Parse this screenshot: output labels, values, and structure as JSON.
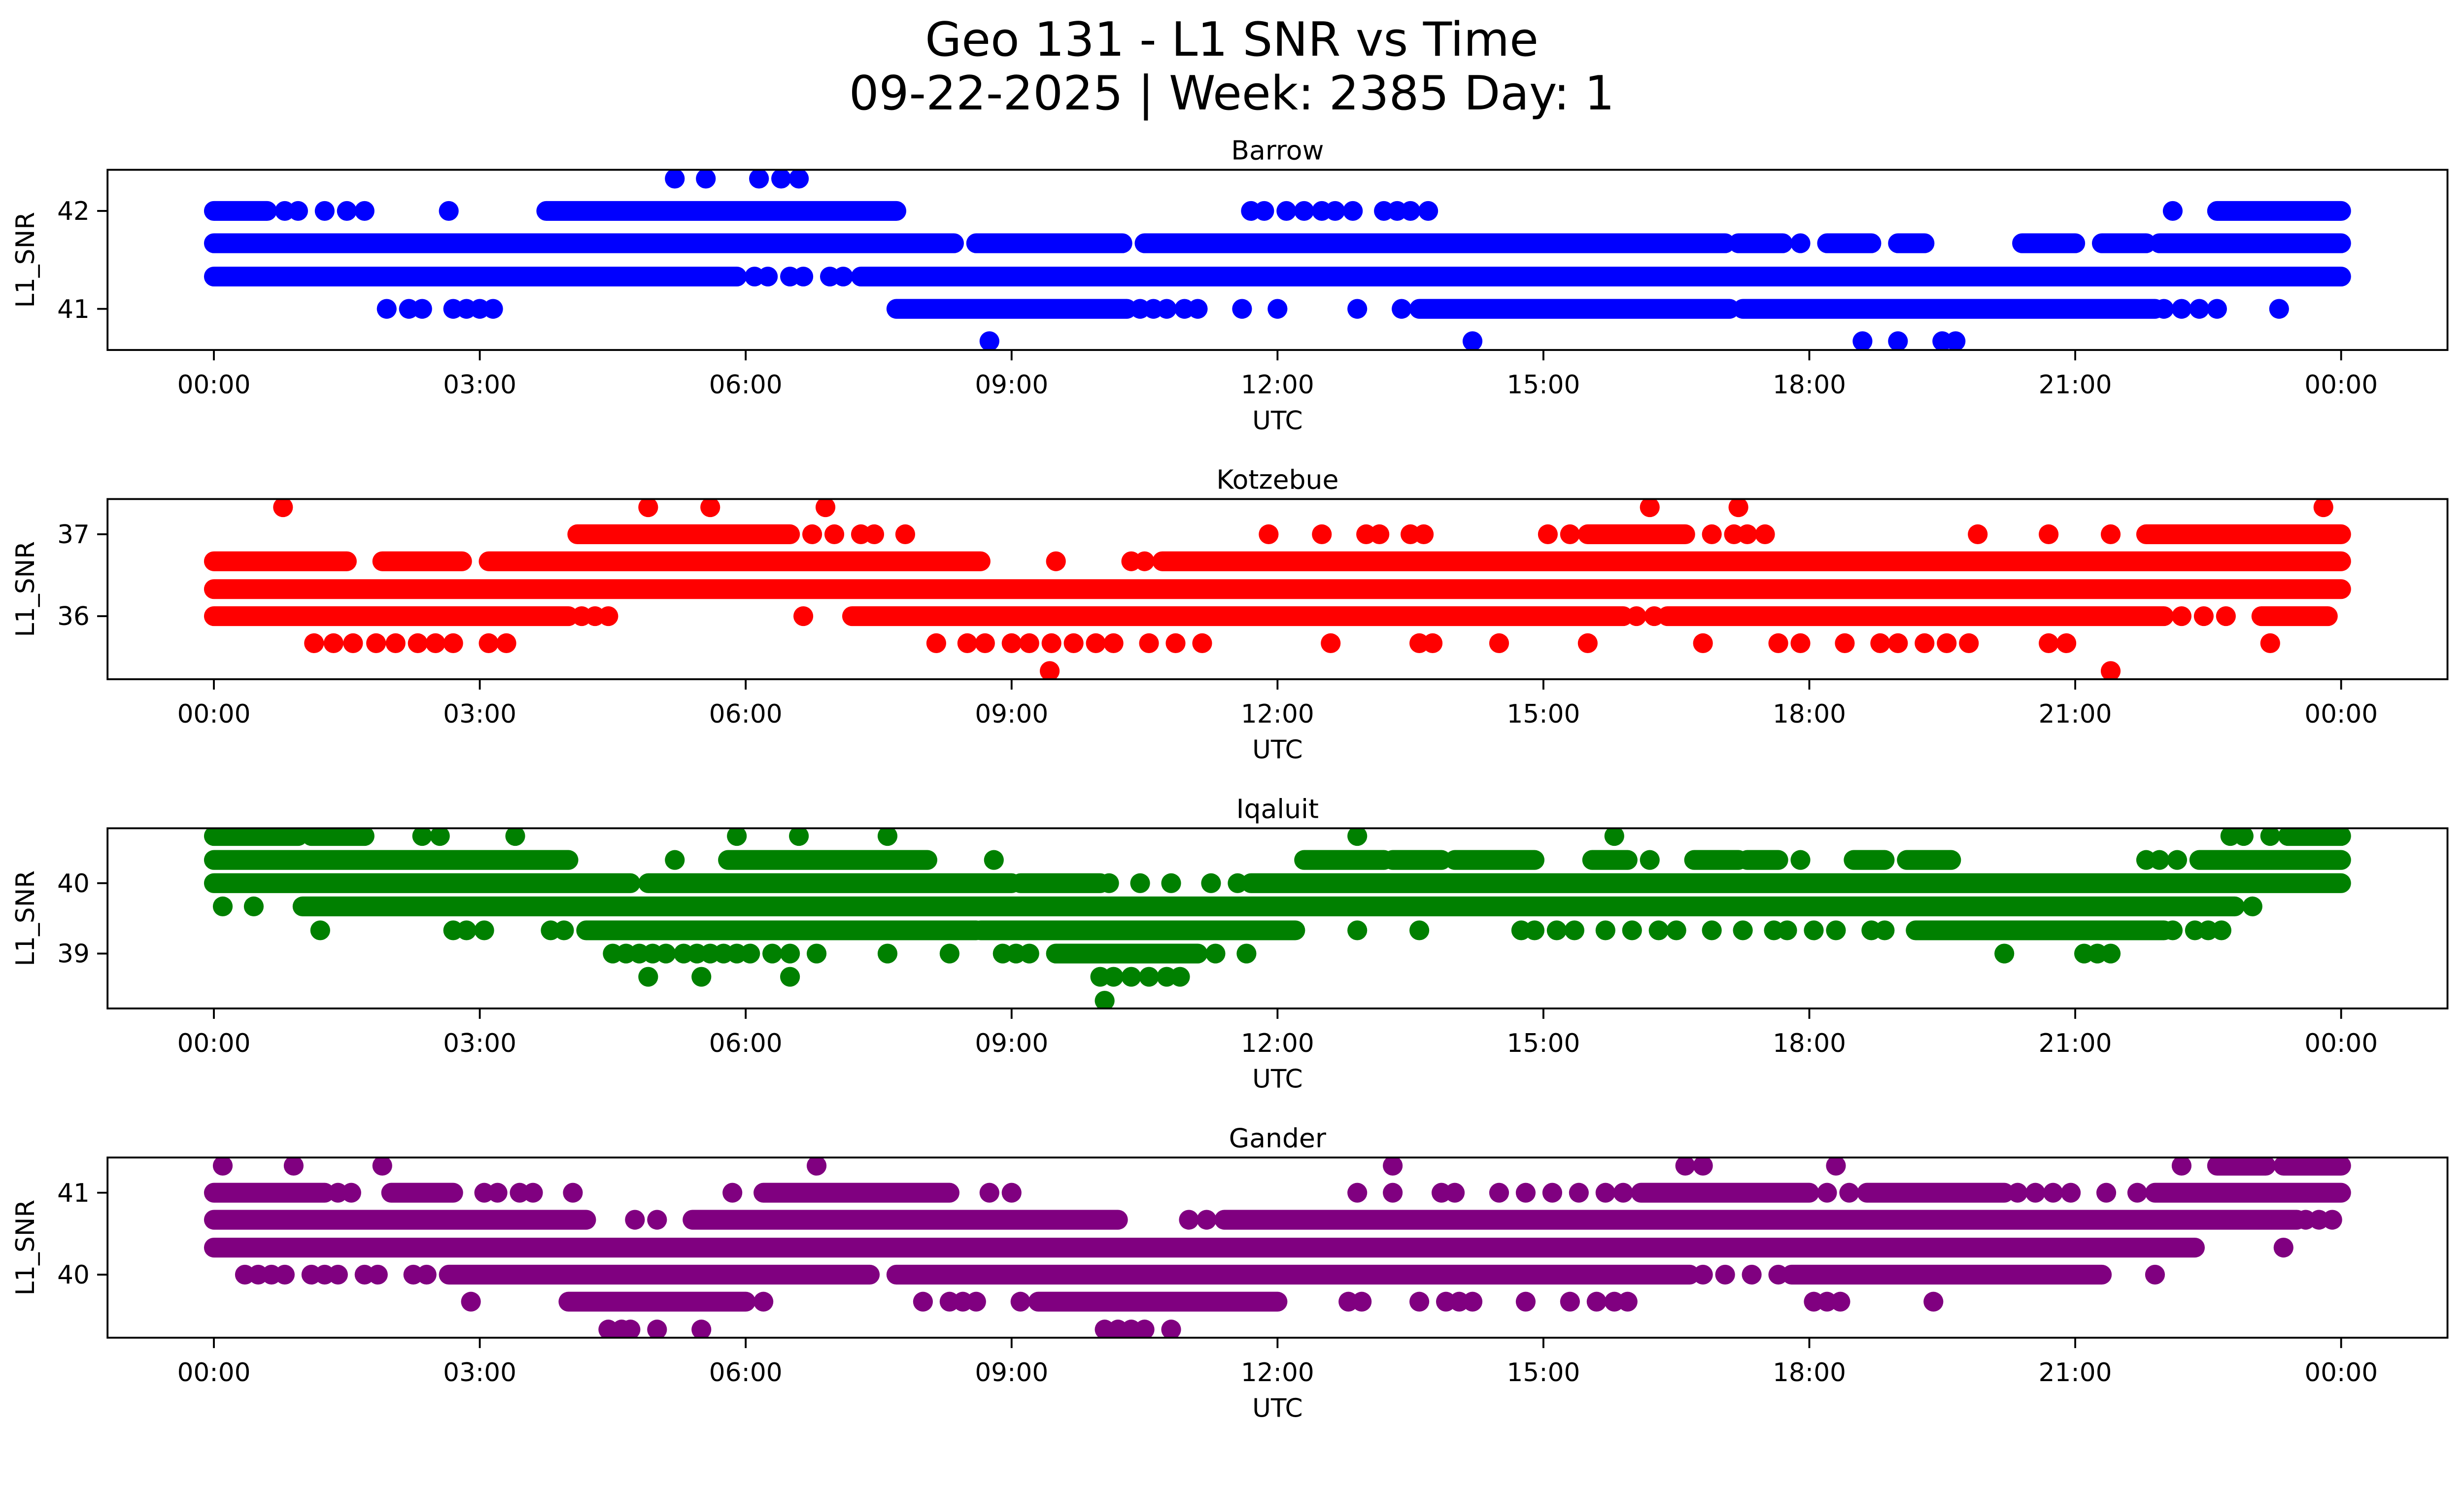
{
  "title": {
    "line1": "Geo 131 - L1 SNR vs Time",
    "line2": "09-22-2025 | Week: 2385 Day: 1"
  },
  "chart_data": [
    {
      "type": "scatter",
      "title": "Barrow",
      "color": "#0000ff",
      "xlabel": "UTC",
      "ylabel": "L1_SNR",
      "x_tick_hours": [
        0,
        3,
        6,
        9,
        12,
        15,
        18,
        21,
        24
      ],
      "x_tick_labels": [
        "00:00",
        "03:00",
        "06:00",
        "09:00",
        "12:00",
        "15:00",
        "18:00",
        "21:00",
        "00:00"
      ],
      "y_ticks": [
        41,
        42
      ],
      "ylim": [
        40.58,
        42.42
      ],
      "xlim": [
        -1.2,
        25.2
      ],
      "bands": [
        {
          "snr": 42.33,
          "solid": [],
          "dots": [
            5.2,
            5.55,
            6.15,
            6.4,
            6.6
          ]
        },
        {
          "snr": 42.0,
          "solid": [
            [
              0,
              0.6
            ],
            [
              3.75,
              7.7
            ],
            [
              22.6,
              24
            ]
          ],
          "dots": [
            0.8,
            0.95,
            1.25,
            1.5,
            1.7,
            2.65,
            11.7,
            11.85,
            12.1,
            12.3,
            12.5,
            12.65,
            12.85,
            13.2,
            13.35,
            13.5,
            13.7,
            22.1
          ]
        },
        {
          "snr": 41.67,
          "solid": [
            [
              0,
              8.35
            ],
            [
              8.6,
              10.25
            ],
            [
              10.5,
              17.05
            ],
            [
              17.2,
              17.7
            ],
            [
              18.2,
              18.7
            ],
            [
              19,
              19.3
            ],
            [
              20.4,
              21
            ],
            [
              21.3,
              21.8
            ],
            [
              21.95,
              24
            ]
          ],
          "dots": [
            17.9
          ]
        },
        {
          "snr": 41.33,
          "solid": [
            [
              0,
              5.9
            ],
            [
              7.3,
              24
            ]
          ],
          "dots": [
            6.1,
            6.25,
            6.5,
            6.65,
            6.95,
            7.1
          ]
        },
        {
          "snr": 41.0,
          "solid": [
            [
              7.7,
              10.3
            ],
            [
              13.6,
              17.1
            ],
            [
              17.25,
              21.9
            ]
          ],
          "dots": [
            1.95,
            2.2,
            2.35,
            2.7,
            2.85,
            3,
            3.15,
            10.45,
            10.6,
            10.75,
            10.95,
            11.1,
            11.6,
            12,
            12.9,
            13.4,
            22,
            22.2,
            22.4,
            22.6,
            23.3
          ]
        },
        {
          "snr": 40.67,
          "solid": [],
          "dots": [
            8.75,
            14.2,
            18.6,
            19,
            19.5,
            19.65
          ]
        }
      ]
    },
    {
      "type": "scatter",
      "title": "Kotzebue",
      "color": "#ff0000",
      "xlabel": "UTC",
      "ylabel": "L1_SNR",
      "x_tick_hours": [
        0,
        3,
        6,
        9,
        12,
        15,
        18,
        21,
        24
      ],
      "x_tick_labels": [
        "00:00",
        "03:00",
        "06:00",
        "09:00",
        "12:00",
        "15:00",
        "18:00",
        "21:00",
        "00:00"
      ],
      "y_ticks": [
        36,
        37
      ],
      "ylim": [
        35.23,
        37.43
      ],
      "xlim": [
        -1.2,
        25.2
      ],
      "bands": [
        {
          "snr": 37.33,
          "solid": [],
          "dots": [
            0.78,
            4.9,
            5.6,
            6.9,
            16.2,
            17.2,
            23.8
          ]
        },
        {
          "snr": 37.0,
          "solid": [
            [
              4.1,
              6.5
            ],
            [
              15.5,
              16.6
            ],
            [
              21.8,
              24
            ]
          ],
          "dots": [
            6.75,
            7,
            7.3,
            7.45,
            7.8,
            11.9,
            12.5,
            13,
            13.15,
            13.5,
            13.65,
            15.05,
            15.3,
            16.9,
            17.15,
            17.3,
            17.5,
            19.9,
            20.7,
            21.4
          ]
        },
        {
          "snr": 36.67,
          "solid": [
            [
              0,
              1.5
            ],
            [
              1.9,
              2.8
            ],
            [
              3.1,
              8.65
            ],
            [
              10.7,
              24
            ]
          ],
          "dots": [
            9.5,
            10.35,
            10.5
          ]
        },
        {
          "snr": 36.33,
          "solid": [
            [
              0,
              24
            ]
          ],
          "dots": []
        },
        {
          "snr": 36.0,
          "solid": [
            [
              0,
              4
            ],
            [
              7.2,
              15.9
            ],
            [
              16.4,
              22
            ],
            [
              23.1,
              23.85
            ]
          ],
          "dots": [
            4.15,
            4.3,
            4.45,
            6.65,
            16.05,
            16.25,
            22.2,
            22.45,
            22.7
          ]
        },
        {
          "snr": 35.67,
          "solid": [],
          "dots": [
            1.13,
            1.35,
            1.57,
            1.83,
            2.05,
            2.3,
            2.5,
            2.7,
            3.1,
            3.3,
            8.15,
            8.5,
            8.7,
            9,
            9.2,
            9.45,
            9.7,
            9.95,
            10.15,
            10.55,
            10.85,
            11.15,
            12.6,
            13.6,
            13.75,
            14.5,
            15.5,
            16.8,
            17.65,
            17.9,
            18.4,
            18.8,
            19,
            19.3,
            19.55,
            19.8,
            20.7,
            20.9,
            23.2
          ]
        },
        {
          "snr": 35.33,
          "solid": [],
          "dots": [
            9.43,
            21.4
          ]
        }
      ]
    },
    {
      "type": "scatter",
      "title": "Iqaluit",
      "color": "#008000",
      "xlabel": "UTC",
      "ylabel": "L1_SNR",
      "x_tick_hours": [
        0,
        3,
        6,
        9,
        12,
        15,
        18,
        21,
        24
      ],
      "x_tick_labels": [
        "00:00",
        "03:00",
        "06:00",
        "09:00",
        "12:00",
        "15:00",
        "18:00",
        "21:00",
        "00:00"
      ],
      "y_ticks": [
        39,
        40
      ],
      "ylim": [
        38.22,
        40.78
      ],
      "xlim": [
        -1.2,
        25.2
      ],
      "bands": [
        {
          "snr": 40.67,
          "solid": [
            [
              0,
              0.95
            ],
            [
              1.1,
              1.7
            ],
            [
              23.4,
              24
            ]
          ],
          "dots": [
            2.35,
            2.55,
            3.4,
            5.9,
            6.6,
            7.6,
            12.9,
            15.8,
            22.75,
            22.9,
            23.2
          ]
        },
        {
          "snr": 40.33,
          "solid": [
            [
              0,
              4
            ],
            [
              5.8,
              8.05
            ],
            [
              12.3,
              13.2
            ],
            [
              13.3,
              13.85
            ],
            [
              14,
              14.9
            ],
            [
              15.55,
              15.95
            ],
            [
              16.7,
              17.2
            ],
            [
              17.3,
              17.65
            ],
            [
              18.5,
              18.85
            ],
            [
              19.1,
              19.6
            ],
            [
              22.4,
              24
            ]
          ],
          "dots": [
            5.2,
            8.8,
            16.2,
            17.9,
            21.8,
            21.95,
            22.15
          ]
        },
        {
          "snr": 40.0,
          "solid": [
            [
              0,
              4.7
            ],
            [
              4.9,
              9
            ],
            [
              9.1,
              10
            ],
            [
              11.7,
              24
            ]
          ],
          "dots": [
            10.1,
            10.45,
            10.8,
            11.25,
            11.55
          ]
        },
        {
          "snr": 39.67,
          "solid": [
            [
              1,
              22.8
            ]
          ],
          "dots": [
            0.1,
            0.45,
            23
          ]
        },
        {
          "snr": 39.33,
          "solid": [
            [
              4.2,
              8.6
            ],
            [
              8.65,
              12.2
            ],
            [
              19.2,
              22
            ]
          ],
          "dots": [
            1.2,
            2.7,
            2.85,
            3.05,
            3.8,
            3.95,
            12.9,
            13.6,
            14.75,
            14.9,
            15.15,
            15.35,
            15.7,
            16,
            16.3,
            16.5,
            16.9,
            17.25,
            17.6,
            17.75,
            18.05,
            18.3,
            18.7,
            18.85,
            22.1,
            22.35,
            22.5,
            22.65
          ]
        },
        {
          "snr": 39.0,
          "solid": [
            [
              9.5,
              11.1
            ]
          ],
          "dots": [
            4.5,
            4.65,
            4.8,
            4.95,
            5.1,
            5.3,
            5.45,
            5.6,
            5.75,
            5.9,
            6.05,
            6.3,
            6.5,
            6.8,
            7.6,
            8.3,
            8.9,
            9.05,
            9.2,
            11.3,
            11.65,
            20.2,
            21.1,
            21.25,
            21.4
          ]
        },
        {
          "snr": 38.67,
          "solid": [],
          "dots": [
            4.9,
            5.5,
            6.5,
            10,
            10.15,
            10.35,
            10.55,
            10.75,
            10.9
          ]
        },
        {
          "snr": 38.33,
          "solid": [],
          "dots": [
            10.05
          ]
        }
      ]
    },
    {
      "type": "scatter",
      "title": "Gander",
      "color": "#800080",
      "xlabel": "UTC",
      "ylabel": "L1_SNR",
      "x_tick_hours": [
        0,
        3,
        6,
        9,
        12,
        15,
        18,
        21,
        24
      ],
      "x_tick_labels": [
        "00:00",
        "03:00",
        "06:00",
        "09:00",
        "12:00",
        "15:00",
        "18:00",
        "21:00",
        "00:00"
      ],
      "y_ticks": [
        40,
        41
      ],
      "ylim": [
        39.23,
        41.43
      ],
      "xlim": [
        -1.2,
        25.2
      ],
      "bands": [
        {
          "snr": 41.33,
          "solid": [
            [
              22.6,
              23.15
            ],
            [
              23.35,
              24
            ]
          ],
          "dots": [
            0.1,
            0.9,
            1.9,
            6.8,
            13.3,
            16.6,
            16.8,
            18.3,
            22.2
          ]
        },
        {
          "snr": 41.0,
          "solid": [
            [
              0,
              1.25
            ],
            [
              2,
              2.7
            ],
            [
              6.2,
              8.3
            ],
            [
              16.1,
              18
            ],
            [
              18.65,
              20.2
            ],
            [
              21.9,
              24
            ]
          ],
          "dots": [
            1.4,
            1.55,
            3.05,
            3.2,
            3.45,
            3.6,
            4.05,
            5.85,
            8.75,
            9,
            12.9,
            13.3,
            13.85,
            14,
            14.5,
            14.8,
            15.1,
            15.4,
            15.7,
            15.9,
            18.2,
            18.45,
            20.35,
            20.55,
            20.75,
            20.95,
            21.35,
            21.7
          ]
        },
        {
          "snr": 40.67,
          "solid": [
            [
              0,
              4.2
            ],
            [
              5.4,
              10.2
            ],
            [
              11.4,
              23.5
            ]
          ],
          "dots": [
            4.75,
            5,
            11,
            11.2,
            23.6,
            23.75,
            23.9
          ]
        },
        {
          "snr": 40.33,
          "solid": [
            [
              0,
              22.35
            ]
          ],
          "dots": [
            23.35
          ]
        },
        {
          "snr": 40.0,
          "solid": [
            [
              2.65,
              7.4
            ],
            [
              7.7,
              16.65
            ],
            [
              17.8,
              21.3
            ]
          ],
          "dots": [
            0.35,
            0.5,
            0.65,
            0.8,
            1.1,
            1.25,
            1.4,
            1.7,
            1.85,
            2.25,
            2.4,
            16.8,
            17.05,
            17.35,
            17.65,
            21.9
          ]
        },
        {
          "snr": 39.67,
          "solid": [
            [
              4,
              6
            ],
            [
              9.3,
              12
            ]
          ],
          "dots": [
            2.9,
            6.2,
            8,
            8.3,
            8.45,
            8.6,
            9.1,
            12.8,
            12.95,
            13.6,
            13.9,
            14.05,
            14.2,
            14.8,
            15.3,
            15.6,
            15.8,
            15.95,
            18.05,
            18.2,
            18.35,
            19.4
          ]
        },
        {
          "snr": 39.33,
          "solid": [],
          "dots": [
            4.45,
            4.6,
            4.7,
            5,
            5.5,
            10.05,
            10.2,
            10.35,
            10.5,
            10.8
          ]
        }
      ]
    }
  ]
}
